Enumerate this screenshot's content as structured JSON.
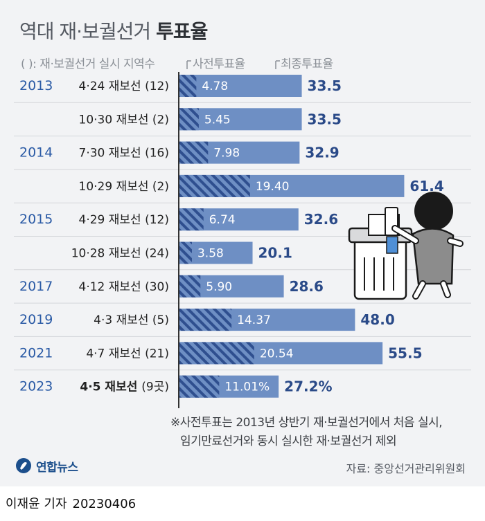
{
  "title": {
    "light": "역대 재·보궐선거",
    "bold": "투표율"
  },
  "header": {
    "paren_note": "( ): 재·보궐선거 실시 지역수",
    "early_label": "사전투표율",
    "final_label": "최종투표율"
  },
  "chart_data": {
    "type": "bar",
    "title": "역대 재·보궐선거 투표율",
    "xlim": [
      0,
      70
    ],
    "series_names": [
      "사전투표율",
      "최종투표율"
    ],
    "rows": [
      {
        "year": "2013",
        "date": "4·24",
        "label": "재보선",
        "regions": "(12)",
        "early": "4.78",
        "final": "33.5"
      },
      {
        "year": "",
        "date": "10·30",
        "label": "재보선",
        "regions": "(2)",
        "early": "5.45",
        "final": "33.5"
      },
      {
        "year": "2014",
        "date": "7·30",
        "label": "재보선",
        "regions": "(16)",
        "early": "7.98",
        "final": "32.9"
      },
      {
        "year": "",
        "date": "10·29",
        "label": "재보선",
        "regions": "(2)",
        "early": "19.40",
        "final": "61.4"
      },
      {
        "year": "2015",
        "date": "4·29",
        "label": "재보선",
        "regions": "(12)",
        "early": "6.74",
        "final": "32.6"
      },
      {
        "year": "",
        "date": "10·28",
        "label": "재보선",
        "regions": "(24)",
        "early": "3.58",
        "final": "20.1"
      },
      {
        "year": "2017",
        "date": "4·12",
        "label": "재보선",
        "regions": "(30)",
        "early": "5.90",
        "final": "28.6"
      },
      {
        "year": "2019",
        "date": "4·3",
        "label": "재보선",
        "regions": "(5)",
        "early": "14.37",
        "final": "48.0"
      },
      {
        "year": "2021",
        "date": "4·7",
        "label": "재보선",
        "regions": "(21)",
        "early": "20.54",
        "final": "55.5"
      },
      {
        "year": "2023",
        "date": "4·5",
        "label": "재보선",
        "regions": "(9곳)",
        "early": "11.01%",
        "final": "27.2%",
        "highlight": true
      }
    ]
  },
  "note": {
    "line1": "※사전투표는 2013년 상반기 재·보궐선거에서 처음 실시,",
    "line2": "임기만료선거와 동시 실시한 재·보궐선거 제외"
  },
  "source": "자료: 중앙선거관리위원회",
  "logo": "연합뉴스",
  "byline": {
    "name": "이재윤 기자",
    "date": "20230406"
  },
  "colors": {
    "bar": "#6e8fc4",
    "bar_dark": "#4a6aa5",
    "stripe": "#2f4f8f",
    "value_text": "#2a4a88",
    "year_text": "#2a5aa5",
    "axis": "#333333"
  }
}
